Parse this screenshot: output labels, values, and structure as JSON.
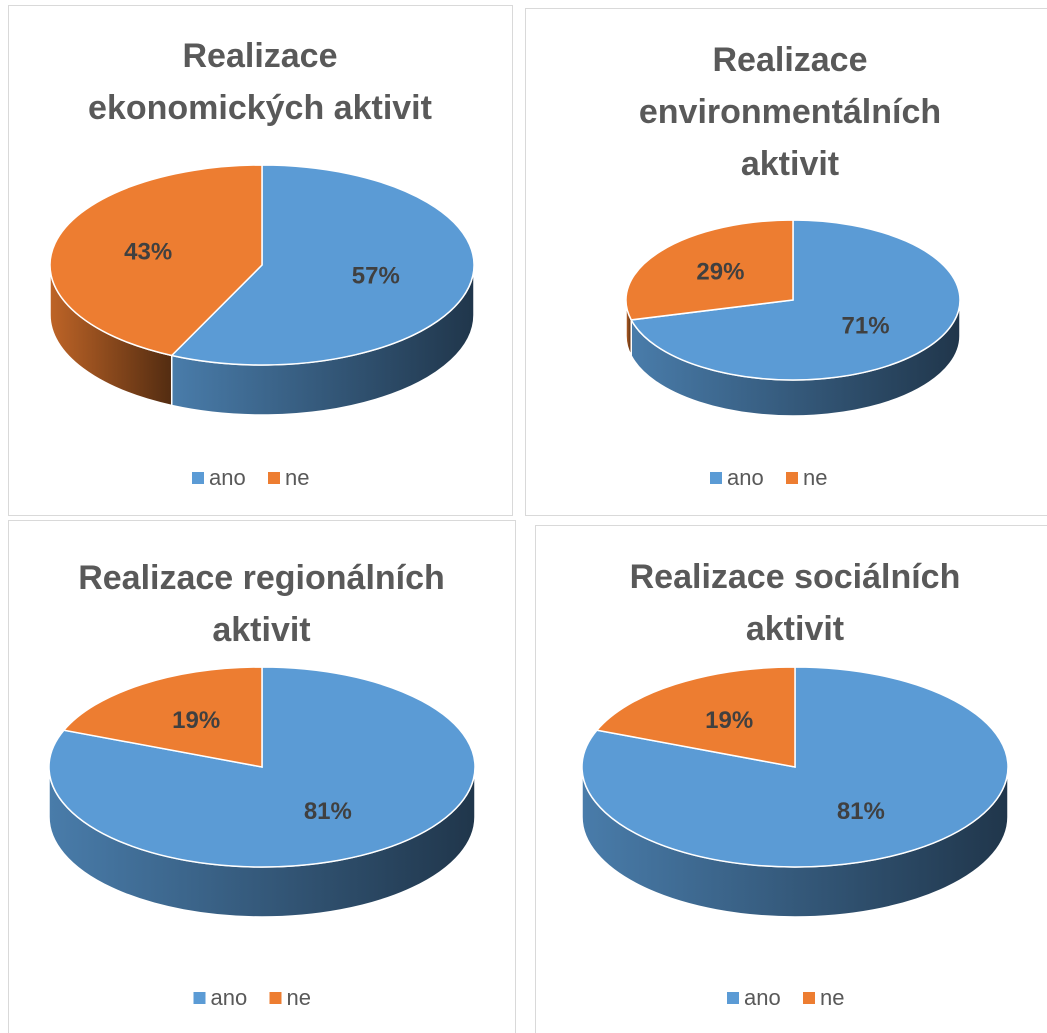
{
  "chart_data": [
    {
      "type": "pie",
      "title": "Realizace ekonomických aktivit",
      "categories": [
        "ano",
        "ne"
      ],
      "values": [
        57,
        43
      ],
      "value_labels": [
        "57%",
        "43%"
      ],
      "colors": [
        "#5b9bd5",
        "#ed7d31"
      ],
      "legend": "bottom"
    },
    {
      "type": "pie",
      "title": "Realizace environmentálních aktivit",
      "categories": [
        "ano",
        "ne"
      ],
      "values": [
        71,
        29
      ],
      "value_labels": [
        "71%",
        "29%"
      ],
      "colors": [
        "#5b9bd5",
        "#ed7d31"
      ],
      "legend": "bottom"
    },
    {
      "type": "pie",
      "title": "Realizace regionálních aktivit",
      "categories": [
        "ano",
        "ne"
      ],
      "values": [
        81,
        19
      ],
      "value_labels": [
        "81%",
        "19%"
      ],
      "colors": [
        "#5b9bd5",
        "#ed7d31"
      ],
      "legend": "bottom"
    },
    {
      "type": "pie",
      "title": "Realizace sociálních aktivit",
      "categories": [
        "ano",
        "ne"
      ],
      "values": [
        81,
        19
      ],
      "value_labels": [
        "81%",
        "19%"
      ],
      "colors": [
        "#5b9bd5",
        "#ed7d31"
      ],
      "legend": "bottom"
    }
  ]
}
